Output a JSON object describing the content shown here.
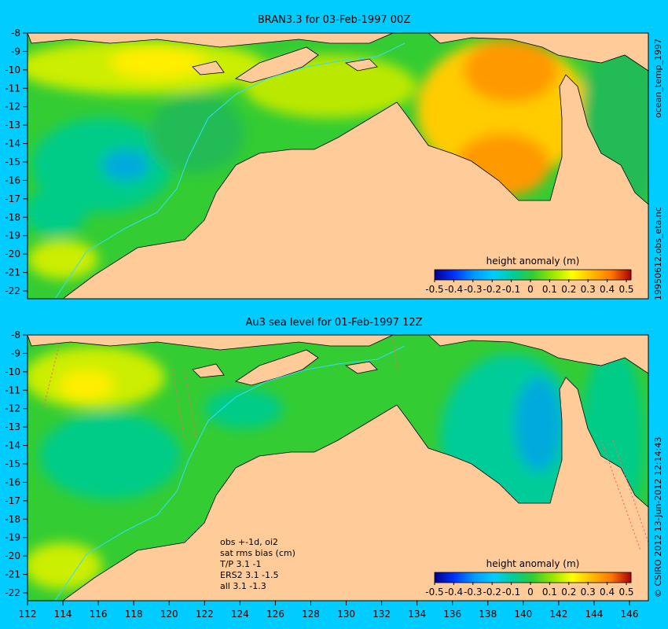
{
  "top_panel": {
    "title": "BRAN3.3 for 03-Feb-1997 00Z",
    "side_label_upper": "ocean_temp_1997",
    "side_label_lower": "19950612.obs_eta.nc",
    "y_ticks": [
      "-8",
      "-9",
      "-10",
      "-11",
      "-12",
      "-13",
      "-14",
      "-15",
      "-16",
      "-17",
      "-18",
      "-19",
      "-20",
      "-21",
      "-22"
    ],
    "colorbar_title": "height anomaly (m)",
    "colorbar_ticks": [
      "-0.5",
      "-0.4",
      "-0.3",
      "-0.2",
      "-0.1",
      "0",
      "0.1",
      "0.2",
      "0.3",
      "0.4",
      "0.5"
    ]
  },
  "bottom_panel": {
    "title": "Au3 sea level  for 01-Feb-1997 12Z",
    "side_label": "© CSIRO 2012  13-Jun-2012 12:14:43",
    "y_ticks": [
      "-8",
      "-9",
      "-10",
      "-11",
      "-12",
      "-13",
      "-14",
      "-15",
      "-16",
      "-17",
      "-18",
      "-19",
      "-20",
      "-21",
      "-22"
    ],
    "x_ticks": [
      "112",
      "114",
      "116",
      "118",
      "120",
      "122",
      "124",
      "126",
      "128",
      "130",
      "132",
      "134",
      "136",
      "138",
      "140",
      "142",
      "144",
      "146"
    ],
    "colorbar_title": "height anomaly (m)",
    "colorbar_ticks": [
      "-0.5",
      "-0.4",
      "-0.3",
      "-0.2",
      "-0.1",
      "0",
      "0.1",
      "0.2",
      "0.3",
      "0.4",
      "0.5"
    ],
    "notes": [
      "obs +-1d, oi2",
      "sat rms bias (cm)",
      "T/P  3.1 -1",
      "ERS2 3.1 -1.5",
      "all 3.1 -1.3"
    ]
  },
  "colors": {
    "background": "#00ccff",
    "land": "#ffcc99",
    "ocean_base": "#33cc33",
    "colorbar": [
      "#00008b",
      "#0000ff",
      "#0066ff",
      "#00ccff",
      "#00cc99",
      "#33cc33",
      "#99e600",
      "#ffff00",
      "#ffcc00",
      "#ff9900",
      "#ff6600",
      "#cc0000"
    ]
  }
}
